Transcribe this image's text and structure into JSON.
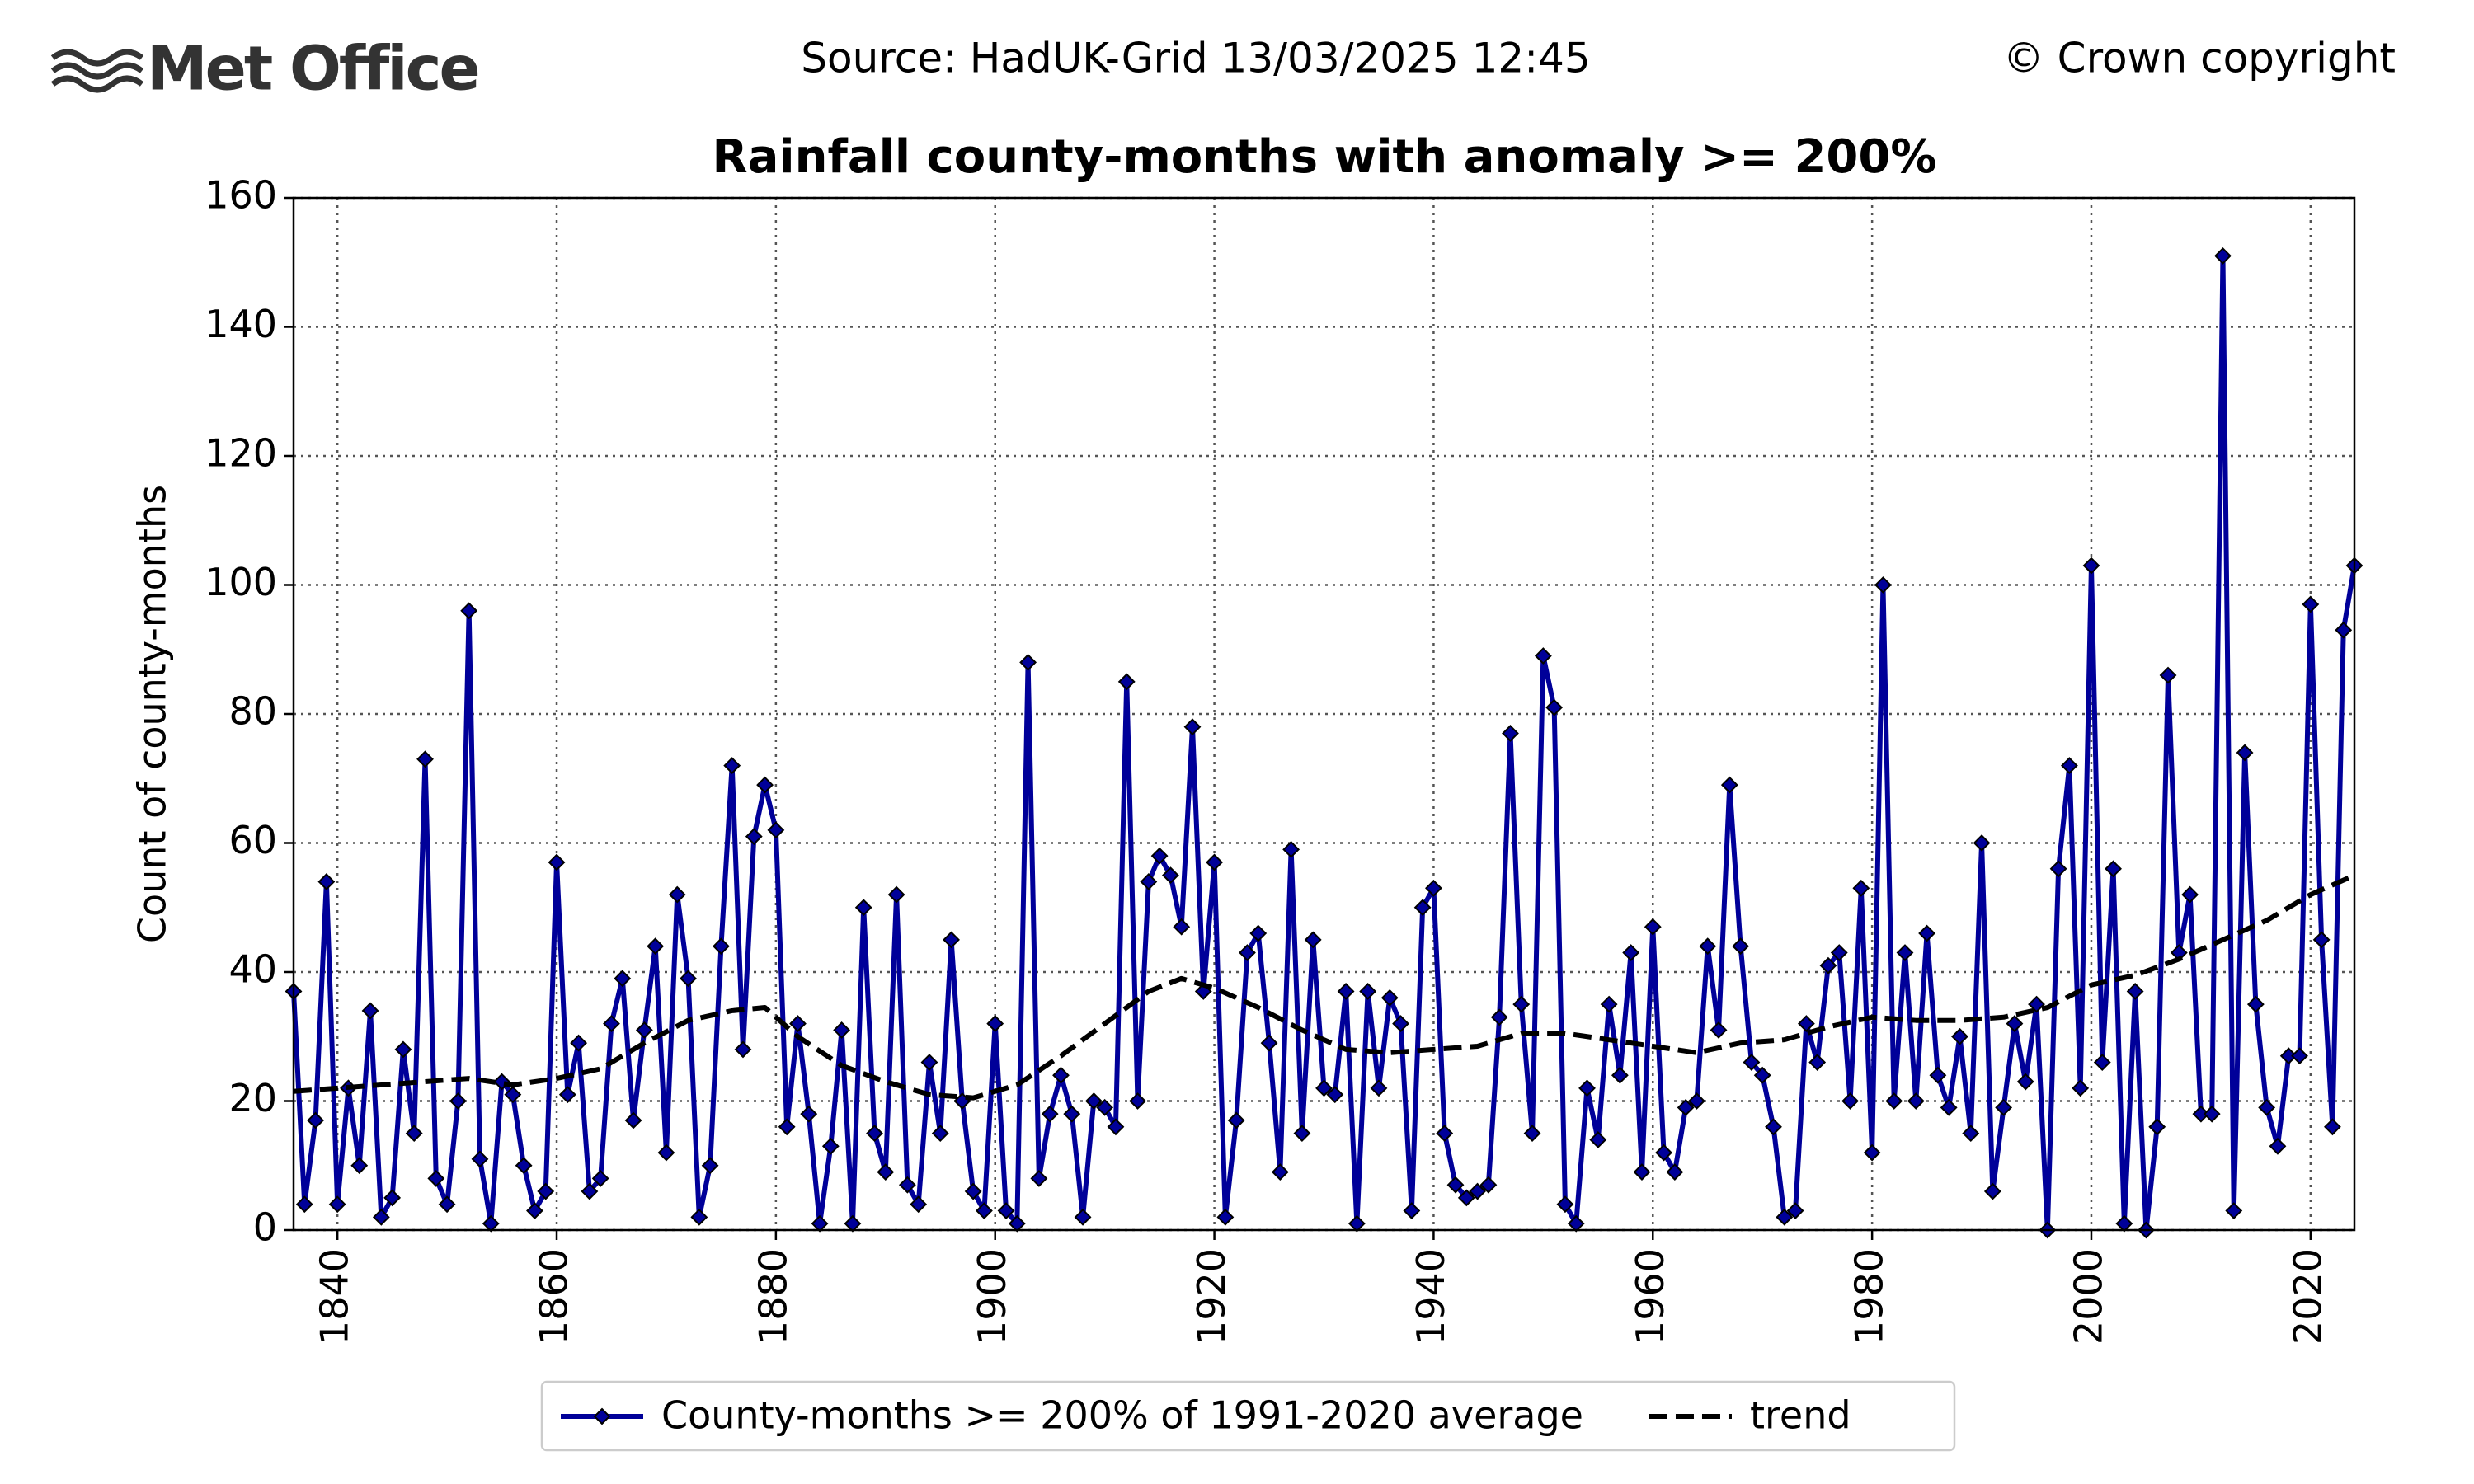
{
  "header": {
    "logo": "Met Office",
    "source": "Source: HadUK-Grid 13/03/2025 12:45",
    "copyright": "© Crown copyright"
  },
  "chart_data": {
    "type": "line",
    "title": "Rainfall county-months with anomaly >= 200%",
    "y_label": "Count of county-months",
    "x": [
      1836,
      1837,
      1838,
      1839,
      1840,
      1841,
      1842,
      1843,
      1844,
      1845,
      1846,
      1847,
      1848,
      1849,
      1850,
      1851,
      1852,
      1853,
      1854,
      1855,
      1856,
      1857,
      1858,
      1859,
      1860,
      1861,
      1862,
      1863,
      1864,
      1865,
      1866,
      1867,
      1868,
      1869,
      1870,
      1871,
      1872,
      1873,
      1874,
      1875,
      1876,
      1877,
      1878,
      1879,
      1880,
      1881,
      1882,
      1883,
      1884,
      1885,
      1886,
      1887,
      1888,
      1889,
      1890,
      1891,
      1892,
      1893,
      1894,
      1895,
      1896,
      1897,
      1898,
      1899,
      1900,
      1901,
      1902,
      1903,
      1904,
      1905,
      1906,
      1907,
      1908,
      1909,
      1910,
      1911,
      1912,
      1913,
      1914,
      1915,
      1916,
      1917,
      1918,
      1919,
      1920,
      1921,
      1922,
      1923,
      1924,
      1925,
      1926,
      1927,
      1928,
      1929,
      1930,
      1931,
      1932,
      1933,
      1934,
      1935,
      1936,
      1937,
      1938,
      1939,
      1940,
      1941,
      1942,
      1943,
      1944,
      1945,
      1946,
      1947,
      1948,
      1949,
      1950,
      1951,
      1952,
      1953,
      1954,
      1955,
      1956,
      1957,
      1958,
      1959,
      1960,
      1961,
      1962,
      1963,
      1964,
      1965,
      1966,
      1967,
      1968,
      1969,
      1970,
      1971,
      1972,
      1973,
      1974,
      1975,
      1976,
      1977,
      1978,
      1979,
      1980,
      1981,
      1982,
      1983,
      1984,
      1985,
      1986,
      1987,
      1988,
      1989,
      1990,
      1991,
      1992,
      1993,
      1994,
      1995,
      1996,
      1997,
      1998,
      1999,
      2000,
      2001,
      2002,
      2003,
      2004,
      2005,
      2006,
      2007,
      2008,
      2009,
      2010,
      2011,
      2012,
      2013,
      2014,
      2015,
      2016,
      2017,
      2018,
      2019,
      2020,
      2021,
      2022,
      2023,
      2024
    ],
    "series": [
      {
        "name": "County-months >= 200% of 1991-2020 average",
        "color": "#000099",
        "marker": "diamond",
        "values": [
          37,
          4,
          17,
          54,
          4,
          22,
          10,
          34,
          2,
          5,
          28,
          15,
          73,
          8,
          4,
          20,
          96,
          11,
          1,
          23,
          21,
          10,
          3,
          6,
          57,
          21,
          29,
          6,
          8,
          32,
          39,
          17,
          31,
          44,
          12,
          52,
          39,
          2,
          10,
          44,
          72,
          28,
          61,
          69,
          62,
          16,
          32,
          18,
          1,
          13,
          31,
          1,
          50,
          15,
          9,
          52,
          7,
          4,
          26,
          15,
          45,
          20,
          6,
          3,
          32,
          3,
          1,
          88,
          8,
          18,
          24,
          18,
          2,
          20,
          19,
          16,
          85,
          20,
          54,
          58,
          55,
          47,
          78,
          37,
          57,
          2,
          17,
          43,
          46,
          29,
          9,
          59,
          15,
          45,
          22,
          21,
          37,
          1,
          37,
          22,
          36,
          32,
          3,
          50,
          53,
          15,
          7,
          5,
          6,
          7,
          33,
          77,
          35,
          15,
          89,
          81,
          4,
          1,
          22,
          14,
          35,
          24,
          43,
          9,
          47,
          12,
          9,
          19,
          20,
          44,
          31,
          69,
          44,
          26,
          24,
          16,
          2,
          3,
          32,
          26,
          41,
          43,
          20,
          53,
          12,
          100,
          20,
          43,
          20,
          46,
          24,
          19,
          30,
          15,
          60,
          6,
          19,
          32,
          23,
          35,
          0,
          56,
          72,
          22,
          103,
          26,
          56,
          1,
          37,
          0,
          16,
          86,
          43,
          52,
          18,
          18,
          151,
          3,
          74,
          35,
          19,
          13,
          27,
          27,
          97,
          45,
          16,
          93,
          103
        ]
      },
      {
        "name": "trend",
        "color": "#000000",
        "dashed": true,
        "x": [
          1836,
          1840,
          1844,
          1848,
          1852,
          1856,
          1860,
          1864,
          1868,
          1872,
          1876,
          1879,
          1882,
          1886,
          1890,
          1894,
          1898,
          1902,
          1906,
          1910,
          1914,
          1917,
          1920,
          1924,
          1928,
          1932,
          1936,
          1940,
          1944,
          1948,
          1952,
          1956,
          1960,
          1964,
          1968,
          1972,
          1976,
          1980,
          1984,
          1988,
          1992,
          1996,
          2000,
          2004,
          2008,
          2012,
          2016,
          2020,
          2024
        ],
        "values": [
          21.5,
          22,
          22.5,
          23,
          23.5,
          22.5,
          23.5,
          25,
          29,
          32.5,
          34,
          34.5,
          30,
          25.5,
          23,
          21,
          20.5,
          22.5,
          27,
          32,
          37,
          39,
          37.5,
          34.5,
          31,
          28,
          27.5,
          28,
          28.5,
          30.5,
          30.5,
          29.5,
          28.5,
          27.5,
          29,
          29.5,
          31.5,
          33,
          32.5,
          32.5,
          33,
          34.5,
          38,
          39.5,
          42,
          45,
          48,
          52,
          55
        ]
      }
    ],
    "xlim": [
      1836,
      2024
    ],
    "xticks": [
      1840,
      1860,
      1880,
      1900,
      1920,
      1940,
      1960,
      1980,
      2000,
      2020
    ],
    "ylim": [
      0,
      160
    ],
    "yticks": [
      0,
      20,
      40,
      60,
      80,
      100,
      120,
      140,
      160
    ],
    "grid": true,
    "legend": "lower center"
  }
}
